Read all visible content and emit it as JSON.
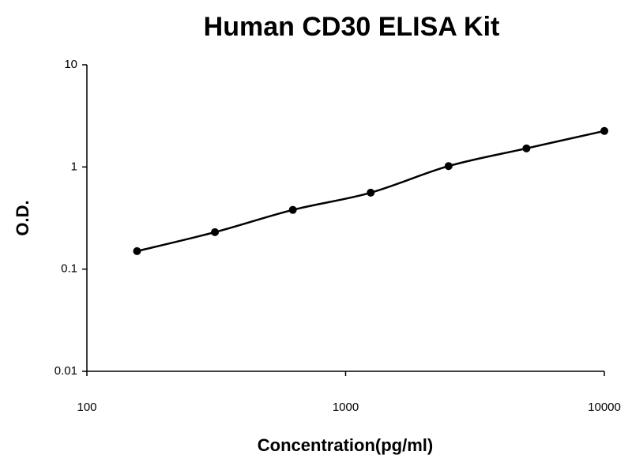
{
  "chart_data": {
    "type": "scatter",
    "title": "Human CD30 ELISA Kit",
    "x_label": "Concentration(pg/ml)",
    "y_label": "O.D.",
    "x_scale": "log",
    "y_scale": "log",
    "line": true,
    "color": "#000000",
    "xlim": [
      100,
      10000
    ],
    "xticks": [
      100,
      1000,
      10000
    ],
    "ylim": [
      0.01,
      10
    ],
    "yticks": [
      0.01,
      0.1,
      1,
      10
    ],
    "series": [
      {
        "x": [
          156.25,
          312.5,
          625,
          1250,
          2500,
          5000,
          10000
        ],
        "values": [
          0.15,
          0.23,
          0.38,
          0.56,
          1.02,
          1.52,
          2.25
        ]
      }
    ]
  }
}
